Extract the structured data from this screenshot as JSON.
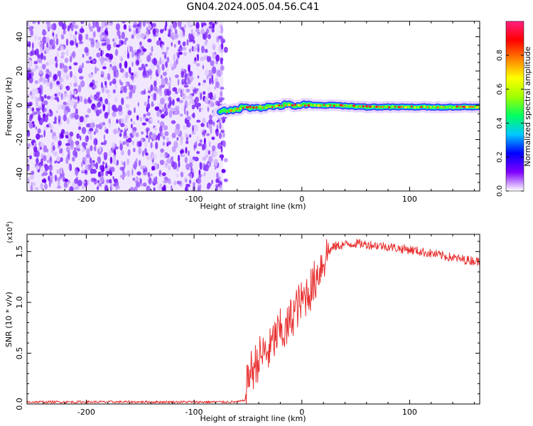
{
  "figure": {
    "title": "GN04.2024.005.04.56.C41"
  },
  "chart_data": [
    {
      "type": "heatmap",
      "xlabel": "Height of straight line (km)",
      "ylabel": "Frequency (Hz)",
      "xlim": [
        -255,
        165
      ],
      "ylim": [
        -50,
        49
      ],
      "xticks": [
        -200,
        -100,
        0,
        100
      ],
      "yticks": [
        -40,
        -20,
        0,
        20,
        40
      ],
      "noise_region_x": [
        -255,
        -73
      ],
      "signal": {
        "x_start": -76,
        "x_end": 165,
        "center_hz": [
          [
            -76,
            -3
          ],
          [
            -70,
            -4
          ],
          [
            -65,
            -3
          ],
          [
            -60,
            -2
          ],
          [
            -50,
            -1
          ],
          [
            -40,
            -1
          ],
          [
            -30,
            -1
          ],
          [
            -20,
            0
          ],
          [
            -10,
            0
          ],
          [
            0,
            0
          ],
          [
            10,
            0
          ],
          [
            30,
            0
          ],
          [
            60,
            -1
          ],
          [
            100,
            -1
          ],
          [
            130,
            -1
          ],
          [
            165,
            -1
          ]
        ]
      },
      "colorbar": {
        "label": "Normalized spectral amplitude",
        "range": [
          0,
          1
        ],
        "ticks": [
          "0.0",
          "0.2",
          "0.4",
          "0.6",
          "0.8"
        ],
        "colors": [
          "#ffffff",
          "#8000ff",
          "#0000ff",
          "#00c8ff",
          "#00ff60",
          "#a0ff00",
          "#ffff00",
          "#ff8000",
          "#ff0000",
          "#ff2080"
        ]
      }
    },
    {
      "type": "line",
      "xlabel": "Height of straight line (km)",
      "ylabel": "SNR (10 * v/v)",
      "y_multiplier": "(x10",
      "y_multiplier_exp": "4",
      "y_multiplier_close": ")",
      "xlim": [
        -255,
        165
      ],
      "ylim": [
        0,
        1.67
      ],
      "xticks": [
        -200,
        -100,
        0,
        100
      ],
      "yticks": [
        "0.0",
        "0.5",
        "1.0",
        "1.5"
      ],
      "color": "#e83030",
      "series": [
        {
          "x": [
            -255,
            -200,
            -150,
            -100,
            -60,
            -55,
            -52,
            -50,
            -45,
            -40,
            -35,
            -30,
            -25,
            -20,
            -15,
            -10,
            -5,
            0,
            5,
            10,
            15,
            20,
            25,
            30,
            40,
            50,
            60,
            70,
            80,
            90,
            100,
            110,
            120,
            130,
            140,
            150,
            160,
            165
          ],
          "values": [
            0.02,
            0.02,
            0.02,
            0.02,
            0.02,
            0.03,
            0.05,
            0.28,
            0.35,
            0.45,
            0.5,
            0.52,
            0.65,
            0.72,
            0.7,
            0.85,
            0.95,
            1.0,
            1.1,
            1.15,
            1.3,
            1.42,
            1.5,
            1.55,
            1.57,
            1.58,
            1.57,
            1.56,
            1.55,
            1.53,
            1.52,
            1.5,
            1.48,
            1.46,
            1.44,
            1.42,
            1.41,
            1.4
          ]
        }
      ]
    }
  ]
}
